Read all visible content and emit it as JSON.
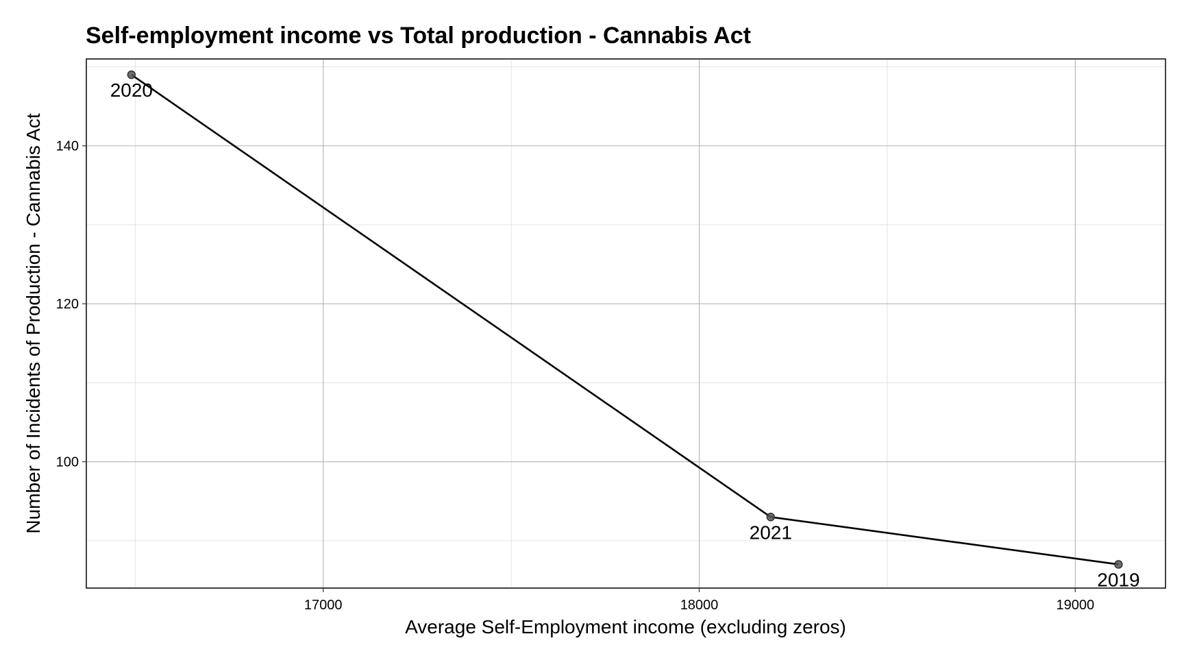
{
  "chart_data": {
    "type": "line",
    "title": "Self-employment income vs Total production - Cannabis Act",
    "xlabel": "Average Self-Employment income (excluding zeros)",
    "ylabel": "Number of Incidents of Production - Cannabis Act",
    "xlim": [
      16370,
      19240
    ],
    "ylim": [
      84,
      151
    ],
    "x_ticks": [
      17000,
      18000,
      19000
    ],
    "x_tick_labels": [
      "17000",
      "18000",
      "19000"
    ],
    "y_ticks": [
      100,
      120,
      140
    ],
    "y_tick_labels": [
      "100",
      "120",
      "140"
    ],
    "x_minor_ticks": [
      16500,
      17500,
      18500
    ],
    "y_minor_ticks": [
      90,
      110,
      130,
      150
    ],
    "grid": true,
    "legend": "none",
    "points": [
      {
        "label": "2020",
        "x": 16490,
        "y": 149
      },
      {
        "label": "2021",
        "x": 18190,
        "y": 93
      },
      {
        "label": "2019",
        "x": 19115,
        "y": 87
      }
    ],
    "colors": {
      "line": "#000000",
      "point": "#555555"
    }
  }
}
